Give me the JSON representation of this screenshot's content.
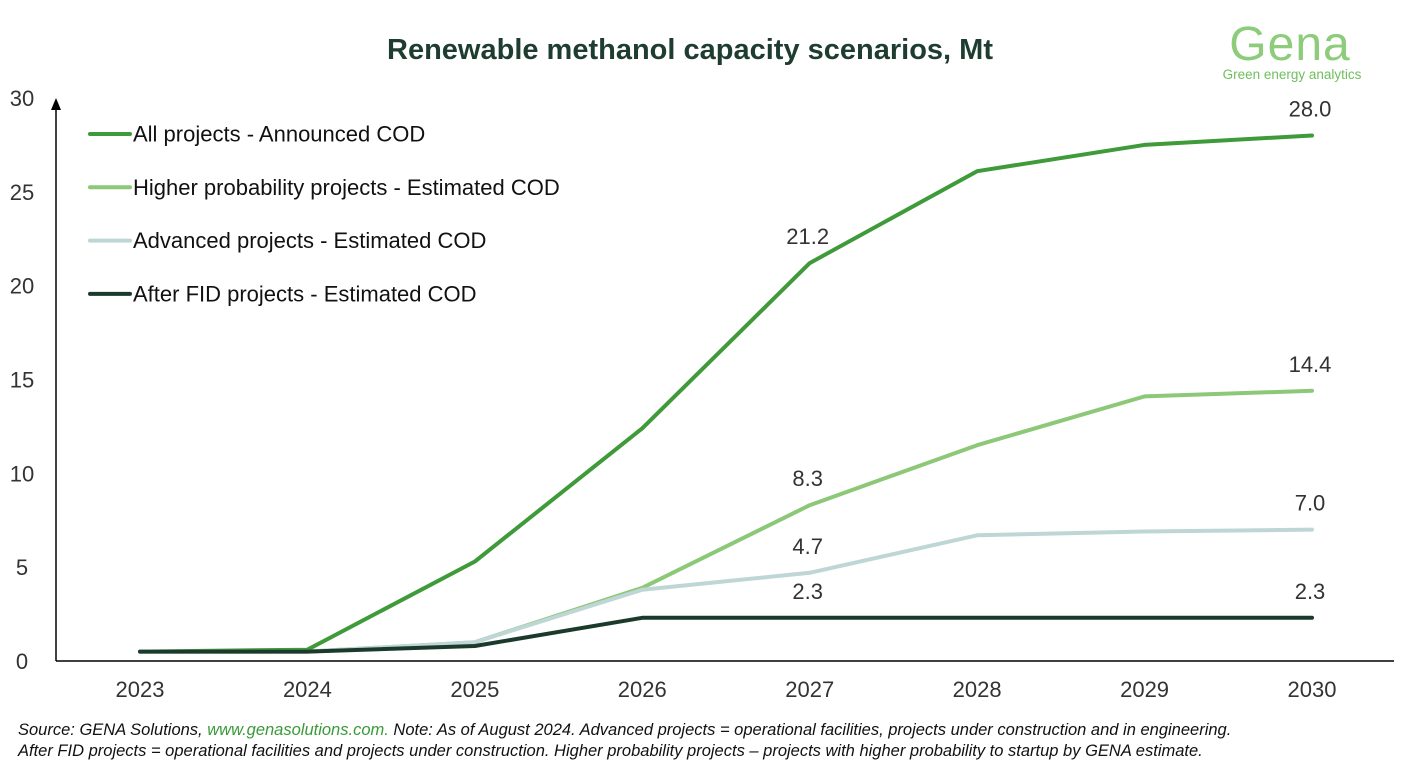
{
  "chart_data": {
    "type": "line",
    "title": "Renewable methanol capacity scenarios, Mt",
    "xlabel": "",
    "ylabel": "",
    "x": [
      "2023",
      "2024",
      "2025",
      "2026",
      "2027",
      "2028",
      "2029",
      "2030"
    ],
    "ylim": [
      0,
      30
    ],
    "yticks": [
      0,
      5,
      10,
      15,
      20,
      25,
      30
    ],
    "grid": false,
    "legend_position": "top-left",
    "series": [
      {
        "name": "All projects - Announced COD",
        "color": "#3f9a3a",
        "values": [
          0.5,
          0.6,
          5.3,
          12.4,
          21.2,
          26.1,
          27.5,
          28.0
        ]
      },
      {
        "name": "Higher probability projects - Estimated COD",
        "color": "#8dc878",
        "values": [
          0.5,
          0.5,
          1.0,
          3.9,
          8.3,
          11.5,
          14.1,
          14.4
        ]
      },
      {
        "name": "Advanced projects - Estimated COD",
        "color": "#bfd6d6",
        "values": [
          0.5,
          0.5,
          1.0,
          3.8,
          4.7,
          6.7,
          6.9,
          7.0
        ]
      },
      {
        "name": "After FID projects - Estimated COD",
        "color": "#1b3a2c",
        "values": [
          0.5,
          0.5,
          0.8,
          2.3,
          2.3,
          2.3,
          2.3,
          2.3
        ]
      }
    ],
    "data_labels": [
      {
        "series": 0,
        "index": 4,
        "text": "21.2"
      },
      {
        "series": 0,
        "index": 7,
        "text": "28.0"
      },
      {
        "series": 1,
        "index": 4,
        "text": "8.3"
      },
      {
        "series": 1,
        "index": 7,
        "text": "14.4"
      },
      {
        "series": 2,
        "index": 4,
        "text": "4.7"
      },
      {
        "series": 2,
        "index": 7,
        "text": "7.0"
      },
      {
        "series": 3,
        "index": 4,
        "text": "2.3"
      },
      {
        "series": 3,
        "index": 7,
        "text": "2.3"
      }
    ]
  },
  "logo": {
    "wordmark": "Gena",
    "tagline": "Green energy analytics"
  },
  "footnote": {
    "prefix": "Source: GENA Solutions, ",
    "link": "www.genasolutions.com.",
    "line1_rest": " Note: As of August 2024. Advanced projects = operational facilities, projects under construction and in engineering.",
    "line2": "After FID projects = operational facilities and projects under construction. Higher probability projects – projects with higher probability to startup by GENA estimate."
  }
}
